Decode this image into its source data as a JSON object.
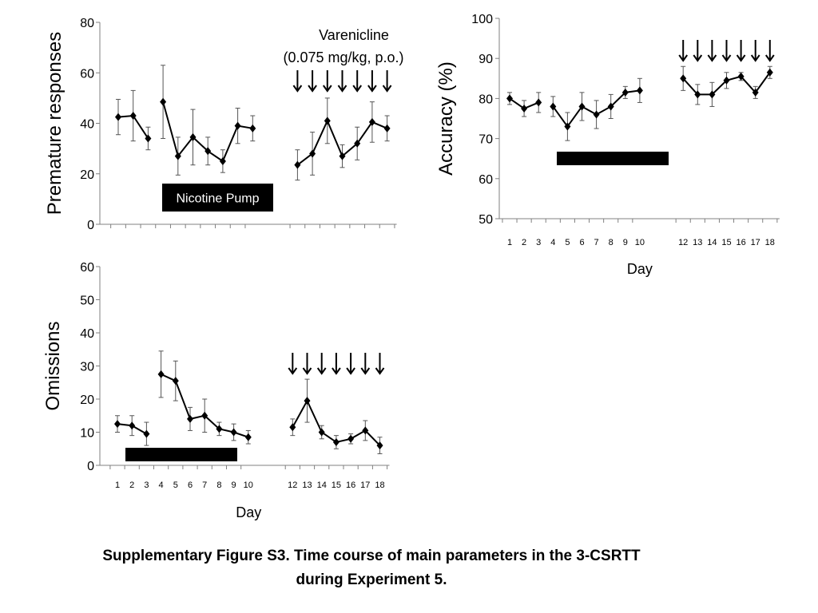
{
  "caption": {
    "line1": "Supplementary Figure S3. Time course of main parameters in the 3-CSRTT",
    "line2": "during Experiment 5."
  },
  "chart_data": [
    {
      "type": "line",
      "ylabel": "Premature responses",
      "xlabel": "",
      "ylim": [
        0,
        80
      ],
      "yticks": [
        0,
        20,
        40,
        60,
        80
      ],
      "x": [
        1,
        2,
        3,
        4,
        5,
        6,
        7,
        8,
        9,
        10,
        12,
        13,
        14,
        15,
        16,
        17,
        18
      ],
      "values": [
        42.5,
        43,
        34,
        48.5,
        27,
        34.5,
        29,
        25,
        39,
        38,
        23.5,
        28,
        41,
        27,
        32,
        40.5,
        38
      ],
      "errors": [
        7,
        10,
        4.5,
        14.5,
        7.5,
        11,
        5.5,
        4.5,
        7,
        5,
        6,
        8.5,
        9,
        4.5,
        6.5,
        8,
        5
      ],
      "show_day_ticks": false,
      "annotations": {
        "treatment_label": "Varenicline",
        "treatment_dose": "(0.075 mg/kg, p.o.)",
        "arrow_days": [
          12,
          13,
          14,
          15,
          16,
          17,
          18
        ],
        "bar_label": "Nicotine Pump",
        "bar_days": [
          4,
          10
        ]
      }
    },
    {
      "type": "line",
      "ylabel": "Accuracy (%)",
      "xlabel": "Day",
      "ylim": [
        50,
        100
      ],
      "yticks": [
        50,
        60,
        70,
        80,
        90,
        100
      ],
      "x": [
        1,
        2,
        3,
        4,
        5,
        6,
        7,
        8,
        9,
        10,
        12,
        13,
        14,
        15,
        16,
        17,
        18
      ],
      "values": [
        80,
        77.5,
        79,
        78,
        73,
        78,
        76,
        78,
        81.5,
        82,
        85,
        81,
        81,
        84.5,
        85.5,
        81.5,
        86.5
      ],
      "errors": [
        1.5,
        2,
        2.5,
        2.5,
        3.5,
        3.5,
        3.5,
        3,
        1.5,
        3,
        3,
        2.5,
        3,
        2,
        1,
        1.5,
        1.5
      ],
      "show_day_ticks": true,
      "annotations": {
        "arrow_days": [
          12,
          13,
          14,
          15,
          16,
          17,
          18
        ],
        "bar_label": "",
        "bar_days": [
          4,
          10
        ]
      }
    },
    {
      "type": "line",
      "ylabel": "Omissions",
      "xlabel": "Day",
      "ylim": [
        0,
        60
      ],
      "yticks": [
        0,
        10,
        20,
        30,
        40,
        50,
        60
      ],
      "x": [
        1,
        2,
        3,
        4,
        5,
        6,
        7,
        8,
        9,
        10,
        12,
        13,
        14,
        15,
        16,
        17,
        18
      ],
      "values": [
        12.5,
        12,
        9.5,
        27.5,
        25.5,
        14,
        15,
        11,
        10,
        8.5,
        11.5,
        19.5,
        10,
        7,
        8,
        10.5,
        6
      ],
      "errors": [
        2.5,
        3,
        3.5,
        7,
        6,
        3.5,
        5,
        2,
        2.5,
        2,
        2.5,
        6.5,
        2,
        2,
        1.5,
        3,
        2.5
      ],
      "show_day_ticks": true,
      "annotations": {
        "arrow_days": [
          12,
          13,
          14,
          15,
          16,
          17,
          18
        ],
        "bar_label": "",
        "bar_days": [
          1,
          8
        ]
      }
    }
  ]
}
